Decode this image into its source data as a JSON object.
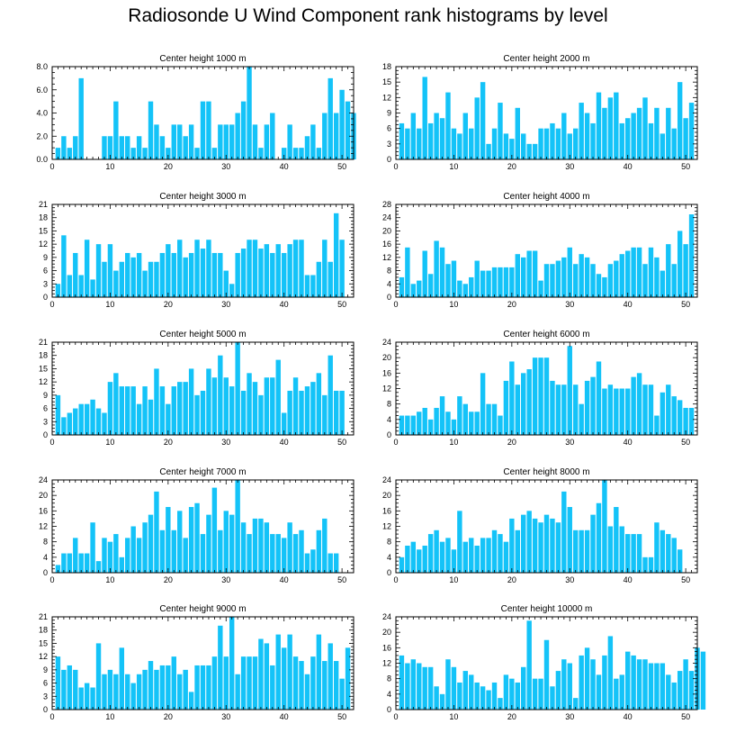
{
  "title": "Radiosonde U Wind Component rank histograms by level",
  "colors": {
    "bar": "#14C3F8",
    "axis": "#000000",
    "background": "#ffffff"
  },
  "chart_data": [
    {
      "type": "bar",
      "title": "Center height 1000 m",
      "ylim": [
        0,
        8
      ],
      "yticks": [
        0,
        2,
        4,
        6,
        8
      ],
      "ytick_labels": [
        "0.0",
        "2.0",
        "4.0",
        "6.0",
        "8.0"
      ],
      "xlim": [
        0,
        52
      ],
      "xticks": [
        0,
        10,
        20,
        30,
        40,
        50
      ],
      "values": [
        1,
        2,
        1,
        2,
        7,
        0,
        0,
        0,
        2,
        2,
        5,
        2,
        2,
        1,
        2,
        1,
        5,
        3,
        2,
        1,
        3,
        3,
        2,
        3,
        1,
        5,
        5,
        1,
        3,
        3,
        3,
        4,
        5,
        8,
        3,
        1,
        3,
        4,
        0,
        1,
        3,
        1,
        1,
        2,
        3,
        1,
        4,
        7,
        4,
        6,
        5,
        4
      ]
    },
    {
      "type": "bar",
      "title": "Center height 2000 m",
      "ylim": [
        0,
        18
      ],
      "yticks": [
        0,
        3,
        6,
        9,
        12,
        15,
        18
      ],
      "ytick_labels": [
        "0",
        "3",
        "6",
        "9",
        "12",
        "15",
        "18"
      ],
      "xlim": [
        0,
        52
      ],
      "xticks": [
        0,
        10,
        20,
        30,
        40,
        50
      ],
      "values": [
        7,
        6,
        9,
        6,
        16,
        7,
        9,
        8,
        13,
        6,
        5,
        9,
        6,
        12,
        15,
        3,
        6,
        11,
        5,
        4,
        10,
        5,
        3,
        3,
        6,
        6,
        7,
        6,
        9,
        5,
        6,
        11,
        9,
        7,
        13,
        10,
        12,
        13,
        7,
        8,
        9,
        10,
        12,
        7,
        10,
        5,
        10,
        6,
        15,
        8,
        11
      ]
    },
    {
      "type": "bar",
      "title": "Center height 3000 m",
      "ylim": [
        0,
        21
      ],
      "yticks": [
        0,
        3,
        6,
        9,
        12,
        15,
        18,
        21
      ],
      "ytick_labels": [
        "0",
        "3",
        "6",
        "9",
        "12",
        "15",
        "18",
        "21"
      ],
      "xlim": [
        0,
        52
      ],
      "xticks": [
        0,
        10,
        20,
        30,
        40,
        50
      ],
      "values": [
        3,
        14,
        5,
        10,
        5,
        13,
        4,
        12,
        8,
        12,
        6,
        8,
        10,
        9,
        10,
        6,
        8,
        8,
        10,
        12,
        10,
        13,
        9,
        10,
        13,
        11,
        13,
        10,
        10,
        6,
        3,
        10,
        11,
        13,
        13,
        11,
        12,
        10,
        12,
        10,
        12,
        13,
        13,
        5,
        5,
        8,
        13,
        8,
        19,
        13
      ]
    },
    {
      "type": "bar",
      "title": "Center height 4000 m",
      "ylim": [
        0,
        28
      ],
      "yticks": [
        0,
        4,
        8,
        12,
        16,
        20,
        24,
        28
      ],
      "ytick_labels": [
        "0",
        "4",
        "8",
        "12",
        "16",
        "20",
        "24",
        "28"
      ],
      "xlim": [
        0,
        52
      ],
      "xticks": [
        0,
        10,
        20,
        30,
        40,
        50
      ],
      "values": [
        6,
        15,
        4,
        5,
        14,
        7,
        17,
        15,
        10,
        11,
        5,
        4,
        6,
        11,
        8,
        8,
        9,
        9,
        9,
        9,
        13,
        12,
        14,
        14,
        5,
        10,
        10,
        11,
        12,
        15,
        10,
        13,
        12,
        10,
        7,
        6,
        10,
        11,
        13,
        14,
        15,
        15,
        10,
        15,
        12,
        8,
        16,
        10,
        20,
        16,
        25
      ]
    },
    {
      "type": "bar",
      "title": "Center height 5000 m",
      "ylim": [
        0,
        21
      ],
      "yticks": [
        0,
        3,
        6,
        9,
        12,
        15,
        18,
        21
      ],
      "ytick_labels": [
        "0",
        "3",
        "6",
        "9",
        "12",
        "15",
        "18",
        "21"
      ],
      "xlim": [
        0,
        52
      ],
      "xticks": [
        0,
        10,
        20,
        30,
        40,
        50
      ],
      "values": [
        9,
        4,
        5,
        6,
        7,
        7,
        8,
        6,
        5,
        12,
        14,
        11,
        11,
        11,
        7,
        11,
        8,
        15,
        11,
        7,
        11,
        12,
        12,
        15,
        9,
        10,
        15,
        13,
        18,
        13,
        11,
        21,
        10,
        14,
        12,
        9,
        13,
        13,
        17,
        5,
        10,
        13,
        10,
        11,
        12,
        14,
        9,
        18,
        10,
        10
      ]
    },
    {
      "type": "bar",
      "title": "Center height 6000 m",
      "ylim": [
        0,
        24
      ],
      "yticks": [
        0,
        4,
        8,
        12,
        16,
        20,
        24
      ],
      "ytick_labels": [
        "0",
        "4",
        "8",
        "12",
        "16",
        "20",
        "24"
      ],
      "xlim": [
        0,
        52
      ],
      "xticks": [
        0,
        10,
        20,
        30,
        40,
        50
      ],
      "values": [
        5,
        5,
        5,
        6,
        7,
        4,
        7,
        10,
        6,
        4,
        10,
        8,
        6,
        6,
        16,
        8,
        8,
        5,
        14,
        19,
        13,
        16,
        17,
        20,
        20,
        20,
        14,
        13,
        13,
        23,
        13,
        8,
        14,
        15,
        19,
        12,
        13,
        12,
        12,
        12,
        15,
        16,
        13,
        13,
        5,
        11,
        13,
        10,
        9,
        7,
        7
      ]
    },
    {
      "type": "bar",
      "title": "Center height 7000 m",
      "ylim": [
        0,
        24
      ],
      "yticks": [
        0,
        4,
        8,
        12,
        16,
        20,
        24
      ],
      "ytick_labels": [
        "0",
        "4",
        "8",
        "12",
        "16",
        "20",
        "24"
      ],
      "xlim": [
        0,
        52
      ],
      "xticks": [
        0,
        10,
        20,
        30,
        40,
        50
      ],
      "values": [
        2,
        5,
        5,
        9,
        5,
        5,
        13,
        3,
        9,
        8,
        10,
        4,
        9,
        12,
        9,
        13,
        15,
        21,
        11,
        17,
        11,
        16,
        9,
        17,
        18,
        10,
        15,
        22,
        11,
        16,
        15,
        24,
        13,
        10,
        14,
        14,
        13,
        10,
        10,
        9,
        13,
        10,
        11,
        5,
        6,
        11,
        14,
        5,
        5
      ]
    },
    {
      "type": "bar",
      "title": "Center height 8000 m",
      "ylim": [
        0,
        24
      ],
      "yticks": [
        0,
        4,
        8,
        12,
        16,
        20,
        24
      ],
      "ytick_labels": [
        "0",
        "4",
        "8",
        "12",
        "16",
        "20",
        "24"
      ],
      "xlim": [
        0,
        52
      ],
      "xticks": [
        0,
        10,
        20,
        30,
        40,
        50
      ],
      "values": [
        4,
        7,
        8,
        6,
        7,
        10,
        11,
        8,
        9,
        6,
        16,
        8,
        9,
        7,
        9,
        9,
        11,
        10,
        8,
        14,
        11,
        15,
        16,
        14,
        13,
        15,
        14,
        13,
        21,
        17,
        11,
        11,
        11,
        15,
        18,
        24,
        12,
        17,
        12,
        10,
        10,
        10,
        4,
        4,
        13,
        11,
        10,
        9,
        6
      ]
    },
    {
      "type": "bar",
      "title": "Center height 9000 m",
      "ylim": [
        0,
        21
      ],
      "yticks": [
        0,
        3,
        6,
        9,
        12,
        15,
        18,
        21
      ],
      "ytick_labels": [
        "0",
        "3",
        "6",
        "9",
        "12",
        "15",
        "18",
        "21"
      ],
      "xlim": [
        0,
        52
      ],
      "xticks": [
        0,
        10,
        20,
        30,
        40,
        50
      ],
      "values": [
        12,
        9,
        10,
        9,
        5,
        6,
        5,
        15,
        8,
        9,
        8,
        14,
        8,
        6,
        8,
        9,
        11,
        9,
        10,
        10,
        12,
        8,
        9,
        4,
        10,
        10,
        10,
        12,
        19,
        12,
        21,
        8,
        12,
        12,
        12,
        16,
        15,
        10,
        17,
        14,
        17,
        12,
        11,
        8,
        12,
        17,
        11,
        15,
        11,
        7,
        14
      ]
    },
    {
      "type": "bar",
      "title": "Center height 10000 m",
      "ylim": [
        0,
        24
      ],
      "yticks": [
        0,
        4,
        8,
        12,
        16,
        20,
        24
      ],
      "ytick_labels": [
        "0",
        "4",
        "8",
        "12",
        "16",
        "20",
        "24"
      ],
      "xlim": [
        0,
        52
      ],
      "xticks": [
        0,
        10,
        20,
        30,
        40,
        50
      ],
      "values": [
        14,
        12,
        13,
        12,
        11,
        11,
        6,
        4,
        13,
        11,
        7,
        10,
        9,
        7,
        6,
        5,
        7,
        3,
        9,
        8,
        7,
        11,
        23,
        8,
        8,
        18,
        6,
        10,
        13,
        12,
        3,
        14,
        16,
        13,
        9,
        14,
        19,
        8,
        9,
        15,
        14,
        13,
        13,
        12,
        12,
        12,
        9,
        7,
        10,
        13,
        10,
        16,
        15
      ]
    }
  ]
}
